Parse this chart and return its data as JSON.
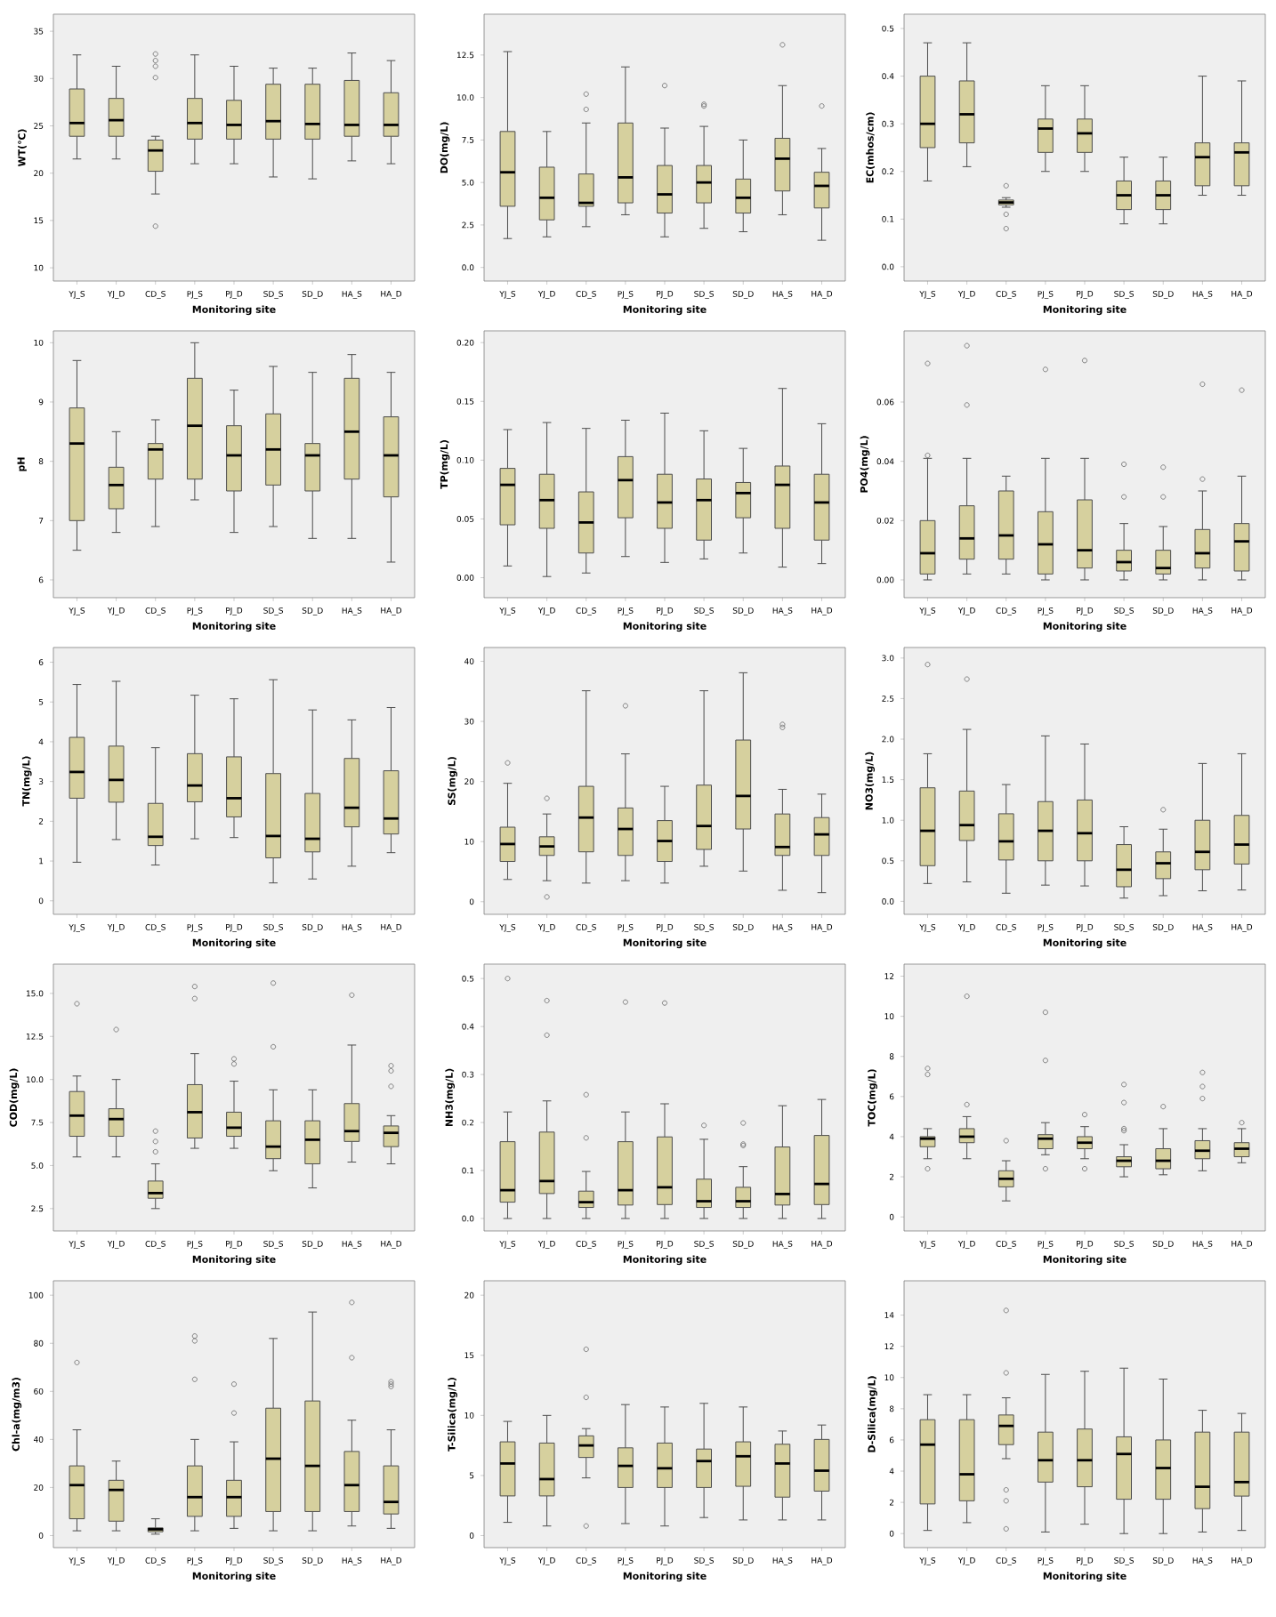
{
  "chart_data": [
    {
      "type": "box",
      "xlabel": "Monitoring site",
      "ylabel": "WT(℃)",
      "color": "#d6d09e",
      "categories": [
        "YJ_S",
        "YJ_D",
        "CD_S",
        "PJ_S",
        "PJ_D",
        "SD_S",
        "SD_D",
        "HA_S",
        "HA_D"
      ],
      "ylim": [
        8.6,
        36.8
      ],
      "yticks": [
        10,
        15,
        20,
        25,
        30,
        35
      ],
      "boxes": [
        {
          "low": 21.5,
          "q1": 23.9,
          "median": 25.3,
          "q3": 28.9,
          "high": 32.5
        },
        {
          "low": 21.5,
          "q1": 23.9,
          "median": 25.6,
          "q3": 27.9,
          "high": 31.3
        },
        {
          "low": 17.8,
          "q1": 20.2,
          "median": 22.4,
          "q3": 23.5,
          "high": 23.9,
          "outliers": [
            32.6,
            31.9,
            31.3,
            30.1,
            14.4
          ]
        },
        {
          "low": 21.0,
          "q1": 23.6,
          "median": 25.3,
          "q3": 27.9,
          "high": 32.5
        },
        {
          "low": 21.0,
          "q1": 23.6,
          "median": 25.1,
          "q3": 27.7,
          "high": 31.3
        },
        {
          "low": 19.6,
          "q1": 23.6,
          "median": 25.5,
          "q3": 29.4,
          "high": 31.1
        },
        {
          "low": 19.4,
          "q1": 23.6,
          "median": 25.2,
          "q3": 29.4,
          "high": 31.1
        },
        {
          "low": 21.3,
          "q1": 23.9,
          "median": 25.1,
          "q3": 29.8,
          "high": 32.7
        },
        {
          "low": 21.0,
          "q1": 23.9,
          "median": 25.1,
          "q3": 28.5,
          "high": 31.9
        }
      ]
    },
    {
      "type": "box",
      "xlabel": "Monitoring site",
      "ylabel": "DO(mg/L)",
      "color": "#d6d09e",
      "categories": [
        "YJ_S",
        "YJ_D",
        "CD_S",
        "PJ_S",
        "PJ_D",
        "SD_S",
        "SD_D",
        "HA_S",
        "HA_D"
      ],
      "ylim": [
        -0.8,
        14.9
      ],
      "yticks": [
        {
          "value": 0,
          "label": "0.0"
        },
        {
          "value": 2.5,
          "label": "2.5"
        },
        {
          "value": 5,
          "label": "5.0"
        },
        {
          "value": 7.5,
          "label": "7.5"
        },
        {
          "value": 10,
          "label": "10.0"
        },
        {
          "value": 12.5,
          "label": "12.5"
        }
      ],
      "boxes": [
        {
          "low": 1.7,
          "q1": 3.6,
          "median": 5.6,
          "q3": 8.0,
          "high": 12.7
        },
        {
          "low": 1.8,
          "q1": 2.8,
          "median": 4.1,
          "q3": 5.9,
          "high": 8.0
        },
        {
          "low": 2.4,
          "q1": 3.6,
          "median": 3.8,
          "q3": 5.5,
          "high": 8.5,
          "outliers": [
            10.2,
            9.3
          ]
        },
        {
          "low": 3.1,
          "q1": 3.8,
          "median": 5.3,
          "q3": 8.5,
          "high": 11.8
        },
        {
          "low": 1.8,
          "q1": 3.2,
          "median": 4.3,
          "q3": 6.0,
          "high": 8.2,
          "outliers": [
            10.7
          ]
        },
        {
          "low": 2.3,
          "q1": 3.8,
          "median": 5.0,
          "q3": 6.0,
          "high": 8.3,
          "outliers": [
            9.6,
            9.5
          ]
        },
        {
          "low": 2.1,
          "q1": 3.2,
          "median": 4.1,
          "q3": 5.2,
          "high": 7.5
        },
        {
          "low": 3.1,
          "q1": 4.5,
          "median": 6.4,
          "q3": 7.6,
          "high": 10.7,
          "outliers": [
            13.1
          ]
        },
        {
          "low": 1.6,
          "q1": 3.5,
          "median": 4.8,
          "q3": 5.6,
          "high": 7.0,
          "outliers": [
            9.5
          ]
        }
      ]
    },
    {
      "type": "box",
      "xlabel": "Monitoring site",
      "ylabel": "EC(mhos/cm)",
      "color": "#d6d09e",
      "categories": [
        "YJ_S",
        "YJ_D",
        "CD_S",
        "PJ_S",
        "PJ_D",
        "SD_S",
        "SD_D",
        "HA_S",
        "HA_D"
      ],
      "ylim": [
        -0.03,
        0.53
      ],
      "yticks": [
        {
          "value": 0,
          "label": "0.0"
        },
        0.1,
        0.2,
        0.3,
        0.4,
        0.5
      ],
      "boxes": [
        {
          "low": 0.18,
          "q1": 0.25,
          "median": 0.3,
          "q3": 0.4,
          "high": 0.47
        },
        {
          "low": 0.21,
          "q1": 0.26,
          "median": 0.32,
          "q3": 0.39,
          "high": 0.47
        },
        {
          "low": 0.125,
          "q1": 0.13,
          "median": 0.135,
          "q3": 0.14,
          "high": 0.145,
          "outliers": [
            0.17,
            0.11,
            0.08
          ]
        },
        {
          "low": 0.2,
          "q1": 0.24,
          "median": 0.29,
          "q3": 0.31,
          "high": 0.38
        },
        {
          "low": 0.2,
          "q1": 0.24,
          "median": 0.28,
          "q3": 0.31,
          "high": 0.38
        },
        {
          "low": 0.09,
          "q1": 0.12,
          "median": 0.15,
          "q3": 0.18,
          "high": 0.23
        },
        {
          "low": 0.09,
          "q1": 0.12,
          "median": 0.15,
          "q3": 0.18,
          "high": 0.23
        },
        {
          "low": 0.15,
          "q1": 0.17,
          "median": 0.23,
          "q3": 0.26,
          "high": 0.4
        },
        {
          "low": 0.15,
          "q1": 0.17,
          "median": 0.24,
          "q3": 0.26,
          "high": 0.39
        }
      ]
    },
    {
      "type": "box",
      "xlabel": "Monitoring site",
      "ylabel": "pH",
      "color": "#d6d09e",
      "categories": [
        "YJ_S",
        "YJ_D",
        "CD_S",
        "PJ_S",
        "PJ_D",
        "SD_S",
        "SD_D",
        "HA_S",
        "HA_D"
      ],
      "ylim": [
        5.7,
        10.2
      ],
      "yticks": [
        6,
        7,
        8,
        9,
        10
      ],
      "boxes": [
        {
          "low": 6.5,
          "q1": 7.0,
          "median": 8.3,
          "q3": 8.9,
          "high": 9.7
        },
        {
          "low": 6.8,
          "q1": 7.2,
          "median": 7.6,
          "q3": 7.9,
          "high": 8.5
        },
        {
          "low": 6.9,
          "q1": 7.7,
          "median": 8.2,
          "q3": 8.3,
          "high": 8.7
        },
        {
          "low": 7.35,
          "q1": 7.7,
          "median": 8.6,
          "q3": 9.4,
          "high": 10.0
        },
        {
          "low": 6.8,
          "q1": 7.5,
          "median": 8.1,
          "q3": 8.6,
          "high": 9.2
        },
        {
          "low": 6.9,
          "q1": 7.6,
          "median": 8.2,
          "q3": 8.8,
          "high": 9.6
        },
        {
          "low": 6.7,
          "q1": 7.5,
          "median": 8.1,
          "q3": 8.3,
          "high": 9.5
        },
        {
          "low": 6.7,
          "q1": 7.7,
          "median": 8.5,
          "q3": 9.4,
          "high": 9.8
        },
        {
          "low": 6.3,
          "q1": 7.4,
          "median": 8.1,
          "q3": 8.75,
          "high": 9.5
        }
      ]
    },
    {
      "type": "box",
      "xlabel": "Monitoring site",
      "ylabel": "TP(mg/L)",
      "color": "#d6d09e",
      "categories": [
        "YJ_S",
        "YJ_D",
        "CD_S",
        "PJ_S",
        "PJ_D",
        "SD_S",
        "SD_D",
        "HA_S",
        "HA_D"
      ],
      "ylim": [
        -0.017,
        0.21
      ],
      "yticks": [
        {
          "value": 0,
          "label": "0.00"
        },
        {
          "value": 0.05,
          "label": "0.05"
        },
        {
          "value": 0.1,
          "label": "0.10"
        },
        {
          "value": 0.15,
          "label": "0.15"
        },
        {
          "value": 0.2,
          "label": "0.20"
        }
      ],
      "boxes": [
        {
          "low": 0.01,
          "q1": 0.045,
          "median": 0.079,
          "q3": 0.093,
          "high": 0.126
        },
        {
          "low": 0.001,
          "q1": 0.042,
          "median": 0.066,
          "q3": 0.088,
          "high": 0.132
        },
        {
          "low": 0.004,
          "q1": 0.021,
          "median": 0.047,
          "q3": 0.073,
          "high": 0.127
        },
        {
          "low": 0.018,
          "q1": 0.051,
          "median": 0.083,
          "q3": 0.103,
          "high": 0.134
        },
        {
          "low": 0.013,
          "q1": 0.042,
          "median": 0.064,
          "q3": 0.088,
          "high": 0.14
        },
        {
          "low": 0.016,
          "q1": 0.032,
          "median": 0.066,
          "q3": 0.084,
          "high": 0.125
        },
        {
          "low": 0.021,
          "q1": 0.051,
          "median": 0.072,
          "q3": 0.081,
          "high": 0.11
        },
        {
          "low": 0.009,
          "q1": 0.042,
          "median": 0.079,
          "q3": 0.095,
          "high": 0.161
        },
        {
          "low": 0.012,
          "q1": 0.032,
          "median": 0.064,
          "q3": 0.088,
          "high": 0.131
        }
      ]
    },
    {
      "type": "box",
      "xlabel": "Monitoring site",
      "ylabel": "PO4(mg/L)",
      "color": "#d6d09e",
      "categories": [
        "YJ_S",
        "YJ_D",
        "CD_S",
        "PJ_S",
        "PJ_D",
        "SD_S",
        "SD_D",
        "HA_S",
        "HA_D"
      ],
      "ylim": [
        -0.006,
        0.084
      ],
      "yticks": [
        {
          "value": 0,
          "label": "0.00"
        },
        {
          "value": 0.02,
          "label": "0.02"
        },
        {
          "value": 0.04,
          "label": "0.04"
        },
        {
          "value": 0.06,
          "label": "0.06"
        }
      ],
      "boxes": [
        {
          "low": 0.0,
          "q1": 0.002,
          "median": 0.009,
          "q3": 0.02,
          "high": 0.041,
          "outliers": [
            0.073,
            0.042
          ]
        },
        {
          "low": 0.002,
          "q1": 0.007,
          "median": 0.014,
          "q3": 0.025,
          "high": 0.041,
          "outliers": [
            0.079,
            0.059
          ]
        },
        {
          "low": 0.002,
          "q1": 0.007,
          "median": 0.015,
          "q3": 0.03,
          "high": 0.035
        },
        {
          "low": 0.0,
          "q1": 0.002,
          "median": 0.012,
          "q3": 0.023,
          "high": 0.041,
          "outliers": [
            0.071
          ]
        },
        {
          "low": 0.0,
          "q1": 0.004,
          "median": 0.01,
          "q3": 0.027,
          "high": 0.041,
          "outliers": [
            0.074
          ]
        },
        {
          "low": 0.0,
          "q1": 0.003,
          "median": 0.006,
          "q3": 0.01,
          "high": 0.019,
          "outliers": [
            0.039,
            0.028
          ]
        },
        {
          "low": 0.0,
          "q1": 0.002,
          "median": 0.004,
          "q3": 0.01,
          "high": 0.018,
          "outliers": [
            0.038,
            0.028
          ]
        },
        {
          "low": 0.0,
          "q1": 0.004,
          "median": 0.009,
          "q3": 0.017,
          "high": 0.03,
          "outliers": [
            0.066,
            0.034
          ]
        },
        {
          "low": 0.0,
          "q1": 0.003,
          "median": 0.013,
          "q3": 0.019,
          "high": 0.035,
          "outliers": [
            0.064
          ]
        }
      ]
    },
    {
      "type": "box",
      "xlabel": "Monitoring site",
      "ylabel": "TN(mg/L)",
      "color": "#d6d09e",
      "categories": [
        "YJ_S",
        "YJ_D",
        "CD_S",
        "PJ_S",
        "PJ_D",
        "SD_S",
        "SD_D",
        "HA_S",
        "HA_D"
      ],
      "ylim": [
        -0.34,
        6.37
      ],
      "yticks": [
        0,
        1,
        2,
        3,
        4,
        5,
        6
      ],
      "boxes": [
        {
          "low": 0.97,
          "q1": 2.58,
          "median": 3.24,
          "q3": 4.11,
          "high": 5.44
        },
        {
          "low": 1.54,
          "q1": 2.48,
          "median": 3.04,
          "q3": 3.89,
          "high": 5.52
        },
        {
          "low": 0.9,
          "q1": 1.39,
          "median": 1.61,
          "q3": 2.45,
          "high": 3.85
        },
        {
          "low": 1.56,
          "q1": 2.49,
          "median": 2.9,
          "q3": 3.7,
          "high": 5.17
        },
        {
          "low": 1.59,
          "q1": 2.11,
          "median": 2.58,
          "q3": 3.62,
          "high": 5.08
        },
        {
          "low": 0.45,
          "q1": 1.08,
          "median": 1.63,
          "q3": 3.2,
          "high": 5.56
        },
        {
          "low": 0.55,
          "q1": 1.23,
          "median": 1.56,
          "q3": 2.7,
          "high": 4.8
        },
        {
          "low": 0.87,
          "q1": 1.86,
          "median": 2.34,
          "q3": 3.58,
          "high": 4.55
        },
        {
          "low": 1.21,
          "q1": 1.68,
          "median": 2.07,
          "q3": 3.27,
          "high": 4.86
        }
      ]
    },
    {
      "type": "box",
      "xlabel": "Monitoring site",
      "ylabel": "SS(mg/L)",
      "color": "#d6d09e",
      "categories": [
        "YJ_S",
        "YJ_D",
        "CD_S",
        "PJ_S",
        "PJ_D",
        "SD_S",
        "SD_D",
        "HA_S",
        "HA_D"
      ],
      "ylim": [
        -2.1,
        42.3
      ],
      "yticks": [
        0,
        10,
        20,
        30,
        40
      ],
      "boxes": [
        {
          "low": 3.7,
          "q1": 6.7,
          "median": 9.6,
          "q3": 12.4,
          "high": 19.7,
          "outliers": [
            23.1
          ]
        },
        {
          "low": 3.5,
          "q1": 7.7,
          "median": 9.2,
          "q3": 10.8,
          "high": 14.6,
          "outliers": [
            17.2,
            0.8
          ]
        },
        {
          "low": 3.1,
          "q1": 8.3,
          "median": 14.0,
          "q3": 19.2,
          "high": 35.1
        },
        {
          "low": 3.5,
          "q1": 7.7,
          "median": 12.1,
          "q3": 15.6,
          "high": 24.6,
          "outliers": [
            32.6
          ]
        },
        {
          "low": 3.1,
          "q1": 6.7,
          "median": 10.1,
          "q3": 13.5,
          "high": 19.2
        },
        {
          "low": 5.9,
          "q1": 8.7,
          "median": 12.6,
          "q3": 19.4,
          "high": 35.1
        },
        {
          "low": 5.1,
          "q1": 12.1,
          "median": 17.6,
          "q3": 26.9,
          "high": 38.1
        },
        {
          "low": 1.9,
          "q1": 7.7,
          "median": 9.1,
          "q3": 14.6,
          "high": 18.7,
          "outliers": [
            29.5,
            29.0
          ]
        },
        {
          "low": 1.5,
          "q1": 7.7,
          "median": 11.2,
          "q3": 14.0,
          "high": 17.9
        }
      ]
    },
    {
      "type": "box",
      "xlabel": "Monitoring site",
      "ylabel": "NO3(mg/L)",
      "color": "#d6d09e",
      "categories": [
        "YJ_S",
        "YJ_D",
        "CD_S",
        "PJ_S",
        "PJ_D",
        "SD_S",
        "SD_D",
        "HA_S",
        "HA_D"
      ],
      "ylim": [
        -0.16,
        3.13
      ],
      "yticks": [
        {
          "value": 0,
          "label": "0.0"
        },
        0.5,
        {
          "value": 1,
          "label": "1.0"
        },
        1.5,
        {
          "value": 2,
          "label": "2.0"
        },
        2.5,
        {
          "value": 3,
          "label": "3.0"
        }
      ],
      "boxes": [
        {
          "low": 0.22,
          "q1": 0.44,
          "median": 0.87,
          "q3": 1.4,
          "high": 1.82,
          "outliers": [
            2.92
          ]
        },
        {
          "low": 0.24,
          "q1": 0.75,
          "median": 0.94,
          "q3": 1.36,
          "high": 2.12,
          "outliers": [
            2.74
          ]
        },
        {
          "low": 0.1,
          "q1": 0.51,
          "median": 0.74,
          "q3": 1.08,
          "high": 1.44
        },
        {
          "low": 0.2,
          "q1": 0.5,
          "median": 0.87,
          "q3": 1.23,
          "high": 2.04
        },
        {
          "low": 0.19,
          "q1": 0.5,
          "median": 0.84,
          "q3": 1.25,
          "high": 1.94
        },
        {
          "low": 0.04,
          "q1": 0.18,
          "median": 0.39,
          "q3": 0.7,
          "high": 0.92
        },
        {
          "low": 0.07,
          "q1": 0.28,
          "median": 0.47,
          "q3": 0.61,
          "high": 0.89,
          "outliers": [
            1.13
          ]
        },
        {
          "low": 0.13,
          "q1": 0.39,
          "median": 0.61,
          "q3": 1.0,
          "high": 1.7
        },
        {
          "low": 0.14,
          "q1": 0.46,
          "median": 0.7,
          "q3": 1.06,
          "high": 1.82
        }
      ]
    },
    {
      "type": "box",
      "xlabel": "Monitoring site",
      "ylabel": "COD(mg/L)",
      "color": "#d6d09e",
      "categories": [
        "YJ_S",
        "YJ_D",
        "CD_S",
        "PJ_S",
        "PJ_D",
        "SD_S",
        "SD_D",
        "HA_S",
        "HA_D"
      ],
      "ylim": [
        1.2,
        16.7
      ],
      "yticks": [
        2.5,
        {
          "value": 5,
          "label": "5.0"
        },
        7.5,
        {
          "value": 10,
          "label": "10.0"
        },
        12.5,
        {
          "value": 15,
          "label": "15.0"
        }
      ],
      "boxes": [
        {
          "low": 5.5,
          "q1": 6.7,
          "median": 7.9,
          "q3": 9.3,
          "high": 10.2,
          "outliers": [
            14.4
          ]
        },
        {
          "low": 5.5,
          "q1": 6.7,
          "median": 7.7,
          "q3": 8.3,
          "high": 10.0,
          "outliers": [
            12.9
          ]
        },
        {
          "low": 2.5,
          "q1": 3.1,
          "median": 3.4,
          "q3": 4.1,
          "high": 5.1,
          "outliers": [
            7.0,
            6.4,
            5.8
          ]
        },
        {
          "low": 6.0,
          "q1": 6.6,
          "median": 8.1,
          "q3": 9.7,
          "high": 11.5,
          "outliers": [
            15.4,
            14.7
          ]
        },
        {
          "low": 6.0,
          "q1": 6.7,
          "median": 7.2,
          "q3": 8.1,
          "high": 9.9,
          "outliers": [
            11.2,
            10.9
          ]
        },
        {
          "low": 4.7,
          "q1": 5.4,
          "median": 6.1,
          "q3": 7.6,
          "high": 9.4,
          "outliers": [
            11.9,
            15.6
          ]
        },
        {
          "low": 3.7,
          "q1": 5.1,
          "median": 6.5,
          "q3": 7.6,
          "high": 9.4
        },
        {
          "low": 5.2,
          "q1": 6.4,
          "median": 7.0,
          "q3": 8.6,
          "high": 12.0,
          "outliers": [
            14.9
          ]
        },
        {
          "low": 5.1,
          "q1": 6.1,
          "median": 6.9,
          "q3": 7.3,
          "high": 7.9,
          "outliers": [
            10.8,
            10.5,
            9.6
          ]
        }
      ]
    },
    {
      "type": "box",
      "xlabel": "Monitoring site",
      "ylabel": "NH3(mg/L)",
      "color": "#d6d09e",
      "categories": [
        "YJ_S",
        "YJ_D",
        "CD_S",
        "PJ_S",
        "PJ_D",
        "SD_S",
        "SD_D",
        "HA_S",
        "HA_D"
      ],
      "ylim": [
        -0.026,
        0.53
      ],
      "yticks": [
        {
          "value": 0,
          "label": "0.0"
        },
        0.1,
        0.2,
        0.3,
        0.4,
        0.5
      ],
      "boxes": [
        {
          "low": 0.0,
          "q1": 0.034,
          "median": 0.059,
          "q3": 0.16,
          "high": 0.222,
          "outliers": [
            0.5
          ]
        },
        {
          "low": 0.0,
          "q1": 0.052,
          "median": 0.078,
          "q3": 0.18,
          "high": 0.245,
          "outliers": [
            0.454,
            0.382
          ]
        },
        {
          "low": 0.0,
          "q1": 0.023,
          "median": 0.034,
          "q3": 0.057,
          "high": 0.098,
          "outliers": [
            0.258,
            0.168
          ]
        },
        {
          "low": 0.0,
          "q1": 0.028,
          "median": 0.059,
          "q3": 0.16,
          "high": 0.222,
          "outliers": [
            0.451
          ]
        },
        {
          "low": 0.0,
          "q1": 0.029,
          "median": 0.065,
          "q3": 0.17,
          "high": 0.239,
          "outliers": [
            0.449
          ]
        },
        {
          "low": 0.0,
          "q1": 0.023,
          "median": 0.036,
          "q3": 0.082,
          "high": 0.165,
          "outliers": [
            0.194
          ]
        },
        {
          "low": 0.0,
          "q1": 0.023,
          "median": 0.036,
          "q3": 0.065,
          "high": 0.108,
          "outliers": [
            0.155,
            0.152,
            0.199
          ]
        },
        {
          "low": 0.0,
          "q1": 0.028,
          "median": 0.051,
          "q3": 0.149,
          "high": 0.235
        },
        {
          "low": 0.0,
          "q1": 0.029,
          "median": 0.072,
          "q3": 0.173,
          "high": 0.248
        }
      ]
    },
    {
      "type": "box",
      "xlabel": "Monitoring site",
      "ylabel": "TOC(mg/L)",
      "color": "#d6d09e",
      "categories": [
        "YJ_S",
        "YJ_D",
        "CD_S",
        "PJ_S",
        "PJ_D",
        "SD_S",
        "SD_D",
        "HA_S",
        "HA_D"
      ],
      "ylim": [
        -0.7,
        12.6
      ],
      "yticks": [
        0,
        2,
        4,
        6,
        8,
        10,
        12
      ],
      "boxes": [
        {
          "low": 2.9,
          "q1": 3.5,
          "median": 3.9,
          "q3": 4.0,
          "high": 4.4,
          "outliers": [
            7.4,
            7.1,
            2.4
          ]
        },
        {
          "low": 2.9,
          "q1": 3.7,
          "median": 4.0,
          "q3": 4.4,
          "high": 5.0,
          "outliers": [
            11.0,
            5.6
          ]
        },
        {
          "low": 0.8,
          "q1": 1.5,
          "median": 1.9,
          "q3": 2.3,
          "high": 2.8,
          "outliers": [
            3.8
          ]
        },
        {
          "low": 3.1,
          "q1": 3.4,
          "median": 3.9,
          "q3": 4.1,
          "high": 4.7,
          "outliers": [
            10.2,
            7.8,
            2.4
          ]
        },
        {
          "low": 2.9,
          "q1": 3.4,
          "median": 3.7,
          "q3": 4.0,
          "high": 4.5,
          "outliers": [
            5.1,
            2.4
          ]
        },
        {
          "low": 2.0,
          "q1": 2.5,
          "median": 2.8,
          "q3": 3.0,
          "high": 3.6,
          "outliers": [
            4.4,
            4.3,
            5.7,
            6.6
          ]
        },
        {
          "low": 2.1,
          "q1": 2.4,
          "median": 2.8,
          "q3": 3.4,
          "high": 4.4,
          "outliers": [
            5.5
          ]
        },
        {
          "low": 2.3,
          "q1": 2.9,
          "median": 3.3,
          "q3": 3.8,
          "high": 4.4,
          "outliers": [
            5.9,
            6.5,
            7.2
          ]
        },
        {
          "low": 2.7,
          "q1": 3.0,
          "median": 3.4,
          "q3": 3.7,
          "high": 4.4,
          "outliers": [
            4.7
          ]
        }
      ]
    },
    {
      "type": "box",
      "xlabel": "Monitoring site",
      "ylabel": "Chl-a(mg/m3)",
      "color": "#d6d09e",
      "categories": [
        "YJ_S",
        "YJ_D",
        "CD_S",
        "PJ_S",
        "PJ_D",
        "SD_S",
        "SD_D",
        "HA_S",
        "HA_D"
      ],
      "ylim": [
        -5,
        106
      ],
      "yticks": [
        0,
        20,
        40,
        60,
        80,
        100
      ],
      "boxes": [
        {
          "low": 2,
          "q1": 7,
          "median": 21,
          "q3": 29,
          "high": 44,
          "outliers": [
            72
          ]
        },
        {
          "low": 2,
          "q1": 6,
          "median": 19,
          "q3": 23,
          "high": 31
        },
        {
          "low": 0.6,
          "q1": 1.6,
          "median": 2.6,
          "q3": 3.2,
          "high": 7
        },
        {
          "low": 2,
          "q1": 8,
          "median": 16,
          "q3": 29,
          "high": 40,
          "outliers": [
            83,
            81,
            65
          ]
        },
        {
          "low": 3,
          "q1": 8,
          "median": 16,
          "q3": 23,
          "high": 39,
          "outliers": [
            63,
            51
          ]
        },
        {
          "low": 2,
          "q1": 10,
          "median": 32,
          "q3": 53,
          "high": 82
        },
        {
          "low": 2,
          "q1": 10,
          "median": 29,
          "q3": 56,
          "high": 93
        },
        {
          "low": 4,
          "q1": 10,
          "median": 21,
          "q3": 35,
          "high": 48,
          "outliers": [
            97,
            74
          ]
        },
        {
          "low": 3,
          "q1": 9,
          "median": 14,
          "q3": 29,
          "high": 44,
          "outliers": [
            64,
            63,
            62
          ]
        }
      ]
    },
    {
      "type": "box",
      "xlabel": "Monitoring site",
      "ylabel": "T-Silica(mg/L)",
      "color": "#d6d09e",
      "categories": [
        "YJ_S",
        "YJ_D",
        "CD_S",
        "PJ_S",
        "PJ_D",
        "SD_S",
        "SD_D",
        "HA_S",
        "HA_D"
      ],
      "ylim": [
        -1,
        21.2
      ],
      "yticks": [
        0,
        5,
        10,
        15,
        20
      ],
      "boxes": [
        {
          "low": 1.1,
          "q1": 3.3,
          "median": 6.0,
          "q3": 7.8,
          "high": 9.5
        },
        {
          "low": 0.8,
          "q1": 3.3,
          "median": 4.7,
          "q3": 7.7,
          "high": 10.0
        },
        {
          "low": 4.8,
          "q1": 6.5,
          "median": 7.5,
          "q3": 8.3,
          "high": 8.9,
          "outliers": [
            15.5,
            11.5,
            0.8
          ]
        },
        {
          "low": 1.0,
          "q1": 4.0,
          "median": 5.8,
          "q3": 7.3,
          "high": 10.9
        },
        {
          "low": 0.8,
          "q1": 4.0,
          "median": 5.6,
          "q3": 7.7,
          "high": 10.7
        },
        {
          "low": 1.5,
          "q1": 4.0,
          "median": 6.2,
          "q3": 7.2,
          "high": 11.0
        },
        {
          "low": 1.3,
          "q1": 4.1,
          "median": 6.6,
          "q3": 7.8,
          "high": 10.7
        },
        {
          "low": 1.3,
          "q1": 3.2,
          "median": 6.0,
          "q3": 7.6,
          "high": 8.7
        },
        {
          "low": 1.3,
          "q1": 3.7,
          "median": 5.4,
          "q3": 8.0,
          "high": 9.2
        }
      ]
    },
    {
      "type": "box",
      "xlabel": "Monitoring site",
      "ylabel": "D-Silica(mg/L)",
      "color": "#d6d09e",
      "categories": [
        "YJ_S",
        "YJ_D",
        "CD_S",
        "PJ_S",
        "PJ_D",
        "SD_S",
        "SD_D",
        "HA_S",
        "HA_D"
      ],
      "ylim": [
        -0.9,
        16.2
      ],
      "yticks": [
        0,
        2,
        4,
        6,
        8,
        10,
        12,
        14
      ],
      "boxes": [
        {
          "low": 0.2,
          "q1": 1.9,
          "median": 5.7,
          "q3": 7.3,
          "high": 8.9
        },
        {
          "low": 0.7,
          "q1": 2.1,
          "median": 3.8,
          "q3": 7.3,
          "high": 8.9
        },
        {
          "low": 4.8,
          "q1": 5.7,
          "median": 6.9,
          "q3": 7.6,
          "high": 8.7,
          "outliers": [
            14.3,
            10.3,
            2.8,
            2.1,
            0.3
          ]
        },
        {
          "low": 0.1,
          "q1": 3.3,
          "median": 4.7,
          "q3": 6.5,
          "high": 10.2
        },
        {
          "low": 0.6,
          "q1": 3.0,
          "median": 4.7,
          "q3": 6.7,
          "high": 10.4
        },
        {
          "low": 0.0,
          "q1": 2.2,
          "median": 5.1,
          "q3": 6.2,
          "high": 10.6
        },
        {
          "low": 0.0,
          "q1": 2.2,
          "median": 4.2,
          "q3": 6.0,
          "high": 9.9
        },
        {
          "low": 0.1,
          "q1": 1.6,
          "median": 3.0,
          "q3": 6.5,
          "high": 7.9
        },
        {
          "low": 0.2,
          "q1": 2.4,
          "median": 3.3,
          "q3": 6.5,
          "high": 7.7
        }
      ]
    }
  ]
}
